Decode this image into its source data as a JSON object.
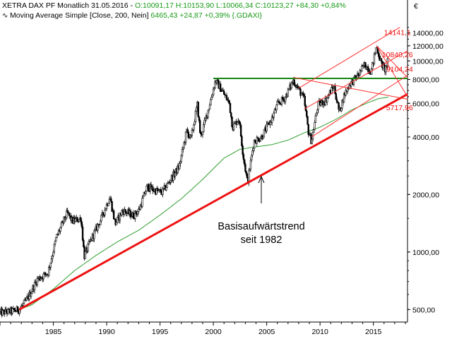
{
  "header": {
    "line1_prefix": "XETRA DAX PF Monatlich  31.05.2016 - ",
    "line1_ohlc": "O:10091,17 H:10153,90 L:10066,34 C:10123,27 +84,30 +0,84%",
    "line2_prefix": "Moving Average Simple [Close, 200, Nein] ",
    "line2_value": "6465,43 +24,87 +0,39% {.GDAXI}",
    "ma_icon": "moving-average-icon"
  },
  "annotation": {
    "line1": "Basisaufwärtstrend",
    "line2": "seit 1982"
  },
  "colors": {
    "candle": "#000000",
    "ma": "#2e9e2e",
    "trend": "#ee1111",
    "channel": "#ff3333",
    "horizontal": "#118811",
    "label": "#ee1111"
  },
  "chart_data": {
    "type": "line",
    "title": "XETRA DAX PF Monatlich",
    "yscale": "log",
    "currency_symbol": "€",
    "xlim": [
      1980.0,
      2018.2
    ],
    "ylim": [
      430,
      15600
    ],
    "x_ticks": [
      1985,
      1990,
      1995,
      2000,
      2005,
      2010,
      2015
    ],
    "x_tick_labels": [
      "1985",
      "1990",
      "1995",
      "2000",
      "2005",
      "2010",
      "2015"
    ],
    "y_ticks": [
      500,
      1000,
      2000,
      4000,
      6000,
      8000,
      10000,
      12000,
      14000
    ],
    "y_tick_labels": [
      "500,00",
      "1000,00",
      "2000,00",
      "4000,00",
      "6000,00",
      "8000,00",
      "10000,00",
      "12000,00",
      "14000,00"
    ],
    "price_anchors": [
      [
        1980.0,
        480
      ],
      [
        1981.0,
        490
      ],
      [
        1981.8,
        500
      ],
      [
        1982.5,
        560
      ],
      [
        1983.5,
        720
      ],
      [
        1984.5,
        780
      ],
      [
        1985.3,
        1200
      ],
      [
        1986.3,
        1600
      ],
      [
        1986.8,
        1450
      ],
      [
        1987.6,
        1500
      ],
      [
        1987.9,
        950
      ],
      [
        1988.5,
        1150
      ],
      [
        1989.5,
        1500
      ],
      [
        1990.3,
        1950
      ],
      [
        1990.8,
        1400
      ],
      [
        1991.5,
        1650
      ],
      [
        1992.5,
        1550
      ],
      [
        1993.0,
        1650
      ],
      [
        1993.8,
        2200
      ],
      [
        1994.5,
        2100
      ],
      [
        1995.2,
        2050
      ],
      [
        1996.0,
        2400
      ],
      [
        1996.8,
        2800
      ],
      [
        1997.5,
        4300
      ],
      [
        1997.9,
        3900
      ],
      [
        1998.5,
        5900
      ],
      [
        1998.8,
        4000
      ],
      [
        1999.5,
        5500
      ],
      [
        2000.2,
        7900
      ],
      [
        2000.8,
        7000
      ],
      [
        2001.5,
        6000
      ],
      [
        2001.8,
        4500
      ],
      [
        2002.4,
        5000
      ],
      [
        2002.8,
        3200
      ],
      [
        2003.2,
        2300
      ],
      [
        2003.8,
        3800
      ],
      [
        2004.5,
        4000
      ],
      [
        2005.5,
        5000
      ],
      [
        2006.0,
        5900
      ],
      [
        2006.7,
        6400
      ],
      [
        2007.5,
        7900
      ],
      [
        2008.0,
        7100
      ],
      [
        2008.5,
        6300
      ],
      [
        2008.9,
        4300
      ],
      [
        2009.2,
        3800
      ],
      [
        2009.8,
        5900
      ],
      [
        2010.5,
        6200
      ],
      [
        2011.3,
        7400
      ],
      [
        2011.8,
        5400
      ],
      [
        2012.3,
        6700
      ],
      [
        2012.8,
        7600
      ],
      [
        2013.5,
        8300
      ],
      [
        2014.2,
        9600
      ],
      [
        2014.8,
        8800
      ],
      [
        2015.3,
        12000
      ],
      [
        2015.7,
        9800
      ],
      [
        2016.1,
        9000
      ],
      [
        2016.4,
        10100
      ]
    ],
    "ma_anchors": [
      [
        1981.0,
        480
      ],
      [
        1983.0,
        530
      ],
      [
        1985.0,
        640
      ],
      [
        1987.0,
        800
      ],
      [
        1989.0,
        960
      ],
      [
        1991.0,
        1130
      ],
      [
        1993.0,
        1300
      ],
      [
        1995.0,
        1560
      ],
      [
        1997.0,
        1900
      ],
      [
        1999.0,
        2400
      ],
      [
        2001.0,
        3100
      ],
      [
        2002.5,
        3450
      ],
      [
        2004.0,
        3550
      ],
      [
        2005.5,
        3650
      ],
      [
        2007.0,
        3850
      ],
      [
        2008.5,
        4200
      ],
      [
        2010.0,
        4500
      ],
      [
        2011.5,
        4950
      ],
      [
        2013.0,
        5550
      ],
      [
        2014.5,
        6050
      ],
      [
        2015.5,
        6350
      ],
      [
        2016.4,
        6465
      ]
    ],
    "lines": [
      {
        "name": "basis-trendline",
        "points": [
          [
            1981.8,
            500
          ],
          [
            2018.2,
            6700
          ]
        ],
        "width": 3.0
      },
      {
        "name": "horizontal-resistance",
        "points": [
          [
            2000.0,
            8100
          ],
          [
            2018.2,
            8100
          ]
        ],
        "width": 2.0
      },
      {
        "name": "channel-upper",
        "points": [
          [
            2008.0,
            7200
          ],
          [
            2017.5,
            15000
          ]
        ],
        "width": 1.0
      },
      {
        "name": "channel-lower",
        "points": [
          [
            2009.2,
            4000
          ],
          [
            2018.2,
            8400
          ]
        ],
        "width": 1.0
      },
      {
        "name": "channel-mid",
        "points": [
          [
            2008.5,
            5600
          ],
          [
            2018.2,
            11300
          ]
        ],
        "width": 1.0
      },
      {
        "name": "fan-1",
        "points": [
          [
            2007.5,
            8200
          ],
          [
            2018.2,
            6300
          ]
        ],
        "width": 1.0
      },
      {
        "name": "fan-2",
        "points": [
          [
            2015.3,
            12000
          ],
          [
            2018.2,
            6500
          ]
        ],
        "width": 1.0
      },
      {
        "name": "fan-3",
        "points": [
          [
            2015.3,
            12000
          ],
          [
            2018.2,
            8200
          ]
        ],
        "width": 1.0
      }
    ],
    "price_labels": [
      {
        "text": "14141,1",
        "x": 2016.0,
        "y": 14141
      },
      {
        "text": "10840,26",
        "x": 2015.8,
        "y": 10840
      },
      {
        "text": "9104,24",
        "x": 2016.2,
        "y": 9104
      },
      {
        "text": "5717,96",
        "x": 2016.2,
        "y": 5718
      }
    ]
  }
}
